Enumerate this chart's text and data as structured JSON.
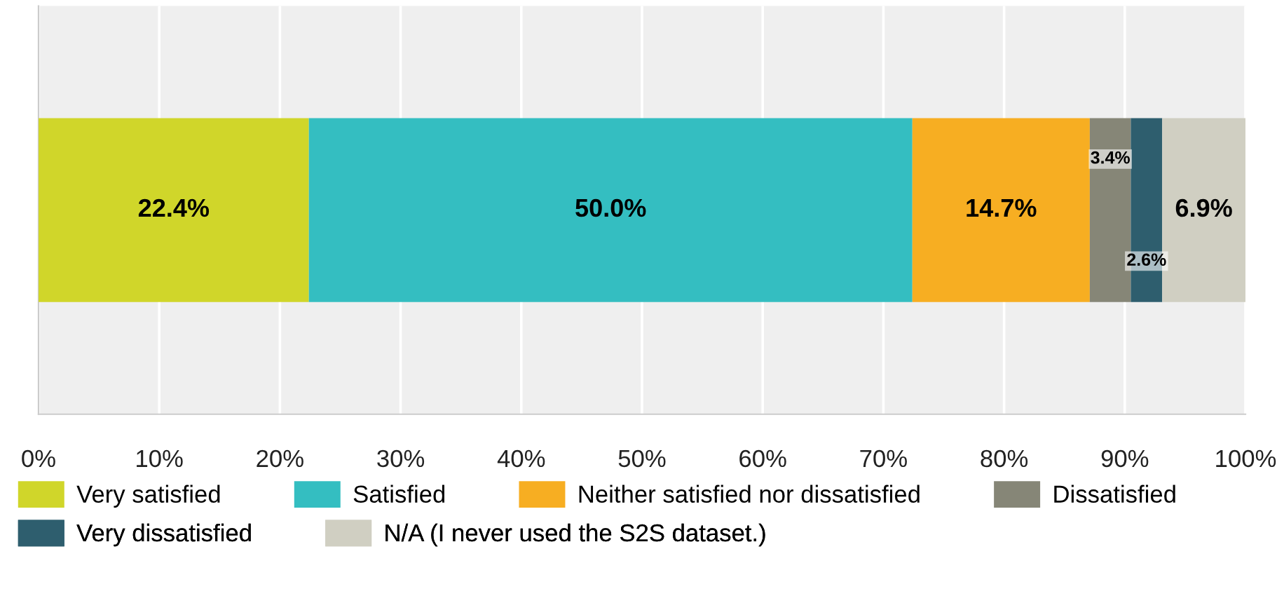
{
  "chart_data": {
    "type": "bar",
    "orientation": "horizontal",
    "stacked": true,
    "categories": [
      null
    ],
    "series": [
      {
        "name": "Very satisfied",
        "color": "#d0d62a",
        "values": [
          22.4
        ],
        "value_labels": [
          "22.4%"
        ]
      },
      {
        "name": "Satisfied",
        "color": "#34bec1",
        "values": [
          50.0
        ],
        "value_labels": [
          "50.0%"
        ]
      },
      {
        "name": "Neither satisfied nor dissatisfied",
        "color": "#f7ae22",
        "values": [
          14.7
        ],
        "value_labels": [
          "14.7%"
        ]
      },
      {
        "name": "Dissatisfied",
        "color": "#868677",
        "values": [
          3.4
        ],
        "value_labels": [
          "3.4%"
        ]
      },
      {
        "name": "Very dissatisfied",
        "color": "#2e5e6e",
        "values": [
          2.6
        ],
        "value_labels": [
          "2.6%"
        ]
      },
      {
        "name": "N/A (I never used the S2S dataset.)",
        "color": "#d0cfc2",
        "values": [
          6.9
        ],
        "value_labels": [
          "6.9%"
        ]
      }
    ],
    "xlim": [
      0,
      100
    ],
    "xticks": [
      {
        "value": 0,
        "label": "0%"
      },
      {
        "value": 10,
        "label": "10%"
      },
      {
        "value": 20,
        "label": "20%"
      },
      {
        "value": 30,
        "label": "30%"
      },
      {
        "value": 40,
        "label": "40%"
      },
      {
        "value": 50,
        "label": "50%"
      },
      {
        "value": 60,
        "label": "60%"
      },
      {
        "value": 70,
        "label": "70%"
      },
      {
        "value": 80,
        "label": "80%"
      },
      {
        "value": 90,
        "label": "90%"
      },
      {
        "value": 100,
        "label": "100%"
      }
    ],
    "grid": "x",
    "legend": "bottom"
  }
}
